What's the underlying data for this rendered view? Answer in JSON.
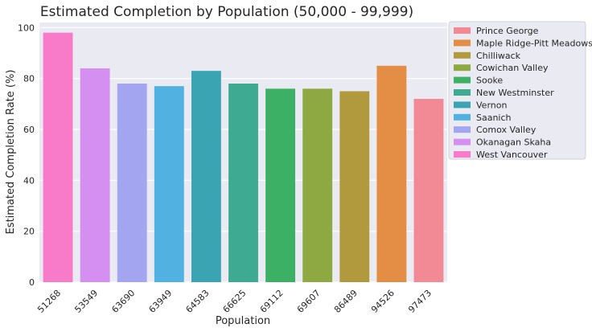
{
  "chart_data": {
    "type": "bar",
    "title": "Estimated Completion by Population (50,000 - 99,999)",
    "xlabel": "Population",
    "ylabel": "Estimated Completion Rate (%)",
    "ylim": [
      0,
      102
    ],
    "yticks": [
      0,
      20,
      40,
      60,
      80,
      100
    ],
    "grid": true,
    "legend_placement": "outside-right",
    "categories": [
      "51268",
      "53549",
      "63690",
      "63949",
      "64583",
      "66625",
      "69112",
      "69607",
      "86489",
      "94526",
      "97473"
    ],
    "values": [
      98,
      84,
      78,
      77,
      83,
      78,
      76,
      76,
      75,
      85,
      72
    ],
    "bar_colors": [
      "#f77bc9",
      "#d58ff0",
      "#a4a5f1",
      "#51b1e1",
      "#3ba4b3",
      "#3daa91",
      "#3cb064",
      "#8ea842",
      "#b19a3e",
      "#e48d45",
      "#f18a94"
    ],
    "legend": [
      {
        "name": "Prince George",
        "color": "#f18a94"
      },
      {
        "name": "Maple Ridge-Pitt Meadows",
        "color": "#e48d45"
      },
      {
        "name": "Chilliwack",
        "color": "#b19a3e"
      },
      {
        "name": "Cowichan Valley",
        "color": "#8ea842"
      },
      {
        "name": "Sooke",
        "color": "#3cb064"
      },
      {
        "name": "New Westminster",
        "color": "#3daa91"
      },
      {
        "name": "Vernon",
        "color": "#3ba4b3"
      },
      {
        "name": "Saanich",
        "color": "#51b1e1"
      },
      {
        "name": "Comox Valley",
        "color": "#a4a5f1"
      },
      {
        "name": "Okanagan Skaha",
        "color": "#d58ff0"
      },
      {
        "name": "West Vancouver",
        "color": "#f77bc9"
      }
    ]
  }
}
